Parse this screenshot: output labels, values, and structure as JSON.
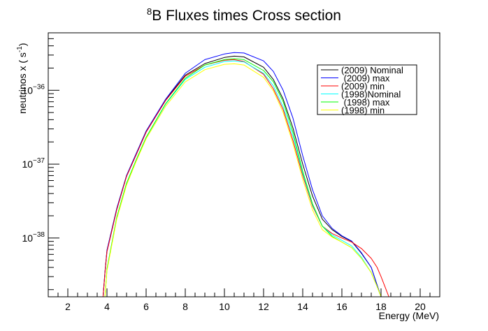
{
  "chart_data": {
    "type": "line",
    "title_sup": "8",
    "title_text": "B Fluxes times Cross section",
    "xlabel": "Energy (MeV)",
    "ylabel_main": "neutrinos x ( s",
    "ylabel_sup": "-1",
    "ylabel_end": ")",
    "xlim": [
      1,
      21
    ],
    "ylim": [
      1.6e-39,
      6e-36
    ],
    "y_scale": "log",
    "grid": false,
    "legend_position": "top-right",
    "x_ticks": [
      2,
      4,
      6,
      8,
      10,
      12,
      14,
      16,
      18,
      20
    ],
    "y_ticks": [
      {
        "value": 1e-38,
        "base": "10",
        "exp": "−38"
      },
      {
        "value": 1e-37,
        "base": "10",
        "exp": "−37"
      },
      {
        "value": 1e-36,
        "base": "10",
        "exp": "−36"
      }
    ],
    "x": [
      3.8,
      3.9,
      4.0,
      4.5,
      5.0,
      5.5,
      6.0,
      7.0,
      8.0,
      9.0,
      10.0,
      10.5,
      11.0,
      12.0,
      12.5,
      13.0,
      13.5,
      14.0,
      14.5,
      15.0,
      15.5,
      16.0,
      16.5,
      17.0,
      17.5,
      17.8,
      18.0,
      18.2,
      18.4
    ],
    "series": [
      {
        "name": "(2009) Nominal",
        "color": "#000000",
        "values": [
          1.6e-39,
          3.5e-39,
          6.8e-39,
          2.5e-38,
          7e-38,
          1.4e-37,
          2.8e-37,
          7.5e-37,
          1.6e-36,
          2.3e-36,
          2.78e-36,
          2.9e-36,
          2.83e-36,
          2.05e-36,
          1.4e-36,
          7.6e-37,
          3.1e-37,
          1e-37,
          3.7e-38,
          1.8e-38,
          1.3e-38,
          1.05e-38,
          9e-39,
          6.2e-39,
          4e-39,
          2.3e-39,
          1.6e-39,
          null,
          null
        ]
      },
      {
        "name": " (2009) max",
        "color": "#0000ff",
        "values": [
          1.6e-39,
          3.5e-39,
          6.8e-39,
          2.5e-38,
          7e-38,
          1.4e-37,
          2.8e-37,
          7.6e-37,
          1.7e-36,
          2.6e-36,
          3.1e-36,
          3.25e-36,
          3.2e-36,
          2.5e-36,
          1.8e-36,
          1e-36,
          4.2e-37,
          1.3e-37,
          4.5e-38,
          2e-38,
          1.35e-38,
          1.07e-38,
          9.1e-39,
          6.3e-39,
          4e-39,
          2.3e-39,
          1.6e-39,
          null,
          null
        ]
      },
      {
        "name": "(2009) min",
        "color": "#ff0000",
        "values": [
          1.6e-39,
          3.4e-39,
          6.5e-39,
          2.4e-38,
          6.8e-38,
          1.35e-37,
          2.7e-37,
          7.3e-37,
          1.55e-36,
          2.2e-36,
          2.55e-36,
          2.6e-36,
          2.45e-36,
          1.65e-36,
          1.05e-36,
          5.5e-37,
          2.1e-37,
          7e-38,
          2.7e-38,
          1.45e-38,
          1.15e-38,
          1e-38,
          8.8e-39,
          7.2e-39,
          5.3e-39,
          4e-39,
          3e-39,
          2.2e-39,
          1.6e-39
        ]
      },
      {
        "name": "(1998)Nominal",
        "color": "#00ffff",
        "values": [
          null,
          1.6e-39,
          3.8e-39,
          1.9e-38,
          5.5e-38,
          1.15e-37,
          2.3e-37,
          6.5e-37,
          1.4e-36,
          2.05e-36,
          2.45e-36,
          2.5e-36,
          2.42e-36,
          1.7e-36,
          1.15e-36,
          6e-37,
          2.4e-37,
          7.5e-38,
          2.8e-38,
          1.45e-38,
          1.1e-38,
          9.3e-39,
          7.8e-39,
          5.5e-39,
          3.4e-39,
          2.2e-39,
          1.6e-39,
          null,
          null
        ]
      },
      {
        "name": " (1998) max",
        "color": "#00ff00",
        "values": [
          null,
          1.6e-39,
          3.8e-39,
          1.9e-38,
          5.5e-38,
          1.15e-37,
          2.3e-37,
          6.6e-37,
          1.45e-36,
          2.2e-36,
          2.6e-36,
          2.68e-36,
          2.6e-36,
          1.85e-36,
          1.3e-36,
          7e-37,
          2.7e-37,
          8e-38,
          2.9e-38,
          1.45e-38,
          1.05e-38,
          8.8e-39,
          7.4e-39,
          5.3e-39,
          3.4e-39,
          2.2e-39,
          1.6e-39,
          null,
          null
        ]
      },
      {
        "name": "(1998) min",
        "color": "#ffff00",
        "values": [
          null,
          1.6e-39,
          3.6e-39,
          1.8e-38,
          5.2e-38,
          1.1e-37,
          2.2e-37,
          6.1e-37,
          1.3e-36,
          1.9e-36,
          2.25e-36,
          2.28e-36,
          2.2e-36,
          1.5e-36,
          9.8e-37,
          5e-37,
          1.9e-37,
          6.2e-38,
          2.4e-38,
          1.3e-38,
          1.03e-38,
          8.8e-39,
          7.4e-39,
          5.3e-39,
          3.4e-39,
          2.2e-39,
          1.6e-39,
          null,
          null
        ]
      }
    ]
  }
}
